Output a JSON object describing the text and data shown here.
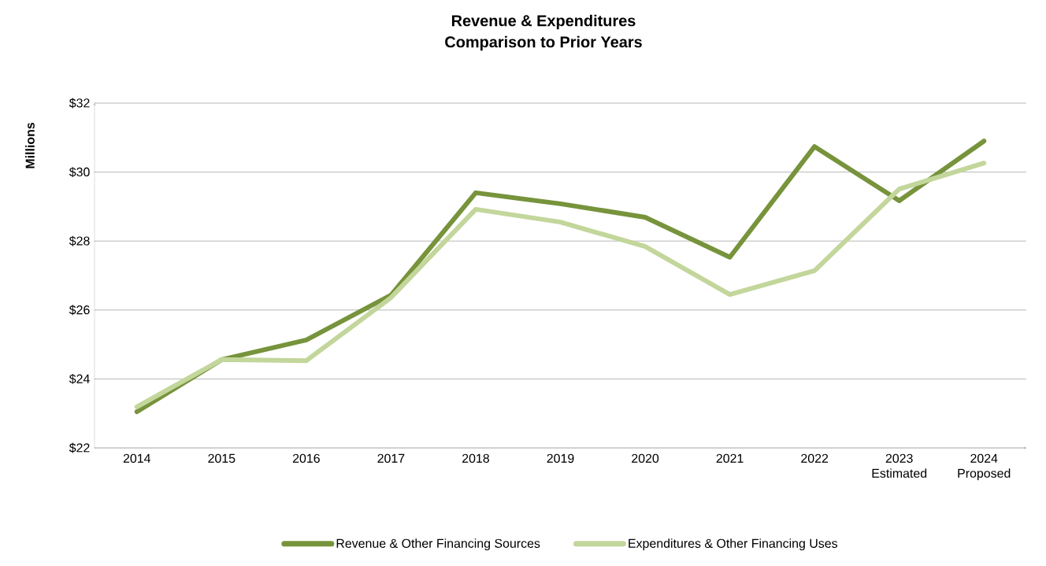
{
  "chart_data": {
    "type": "line",
    "title": "Revenue & Expenditures",
    "subtitle": "Comparison to Prior Years",
    "ylabel": "Millions",
    "categories": [
      "2014",
      "2015",
      "2016",
      "2017",
      "2018",
      "2019",
      "2020",
      "2021",
      "2022",
      "2023 Estimated",
      "2024 Proposed"
    ],
    "series": [
      {
        "name": "Revenue & Other Financing Sources",
        "color": "#77933c",
        "values": [
          23.05,
          24.56,
          25.13,
          26.43,
          29.4,
          29.08,
          28.69,
          27.53,
          30.74,
          29.17,
          30.9
        ]
      },
      {
        "name": "Expenditures & Other Financing Uses",
        "color": "#c3d69b",
        "values": [
          23.19,
          24.56,
          24.53,
          26.36,
          28.92,
          28.55,
          27.84,
          26.45,
          27.14,
          29.51,
          30.26
        ]
      }
    ],
    "ylim": [
      22,
      32
    ],
    "yticks": [
      {
        "value": 22,
        "label": "$22"
      },
      {
        "value": 24,
        "label": "$24"
      },
      {
        "value": 26,
        "label": "$26"
      },
      {
        "value": 28,
        "label": "$28"
      },
      {
        "value": 30,
        "label": "$30"
      },
      {
        "value": 32,
        "label": "$32"
      }
    ],
    "grid": "y",
    "legend": "bottom",
    "marker": "none",
    "line_style": "solid"
  }
}
